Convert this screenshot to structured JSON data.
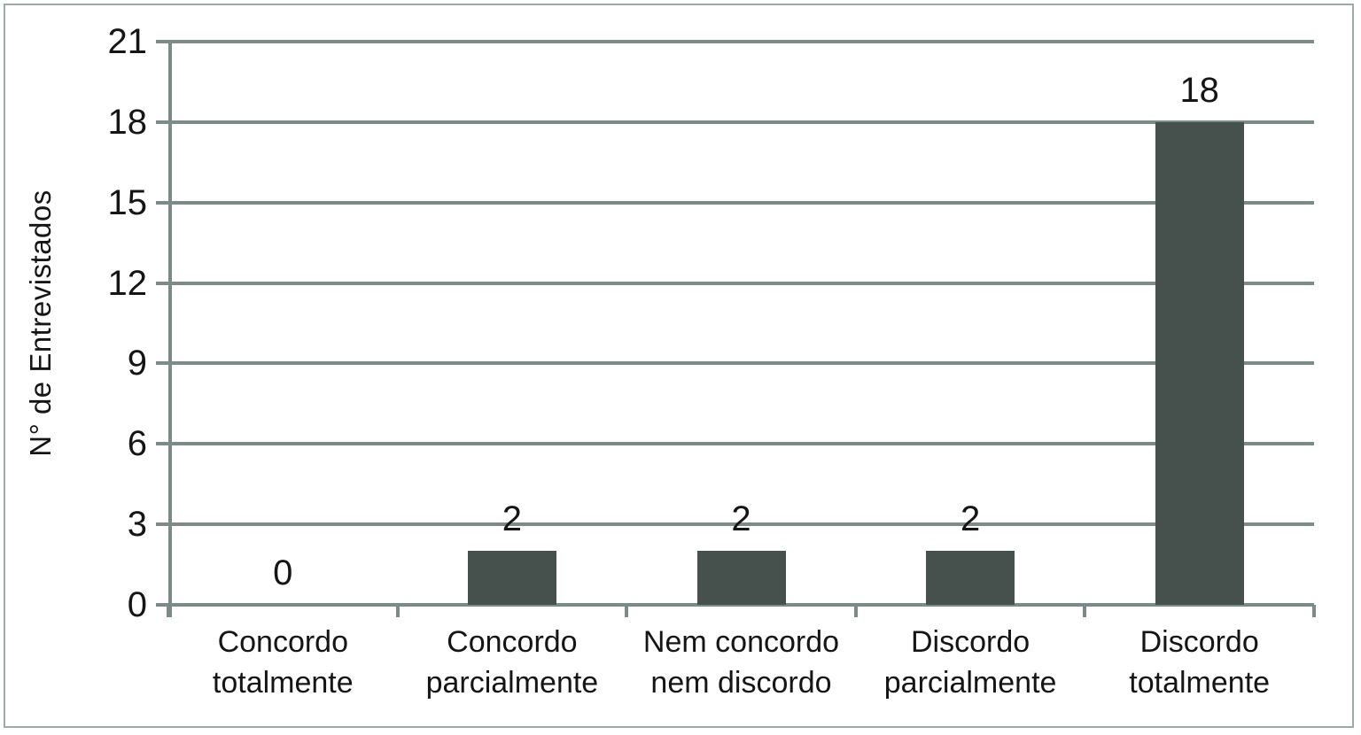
{
  "chart_data": {
    "type": "bar",
    "title": "",
    "categories": [
      "Concordo\ntotalmente",
      "Concordo\nparcialmente",
      "Nem concordo\nnem discordo",
      "Discordo\nparcialmente",
      "Discordo\ntotalmente"
    ],
    "values": [
      0,
      2,
      2,
      2,
      18
    ],
    "value_labels": [
      "0",
      "2",
      "2",
      "2",
      "18"
    ],
    "xlabel": "",
    "ylabel": "N° de Entrevistados",
    "yticks": [
      0,
      3,
      6,
      9,
      12,
      15,
      18,
      21
    ],
    "ylim": [
      0,
      21
    ],
    "grid": true,
    "legend_position": "none",
    "colors": {
      "bar": "#46514e",
      "gridline": "#7d8b88",
      "axis": "#7d8b88",
      "outer_border": "#9fa9a7",
      "text": "#151515",
      "background": "#ffffff"
    }
  }
}
